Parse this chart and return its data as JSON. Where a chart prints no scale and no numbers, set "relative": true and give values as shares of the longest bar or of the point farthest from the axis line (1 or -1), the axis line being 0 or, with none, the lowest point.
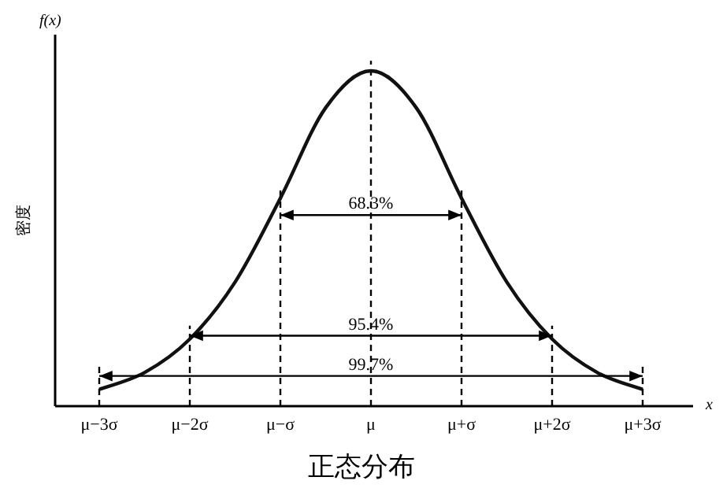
{
  "chart_data": {
    "type": "line",
    "relative": true,
    "title": "正态分布",
    "xlabel": "x",
    "ylabel": "密度",
    "categories": [
      "μ−3σ",
      null,
      "μ−2σ",
      null,
      "μ−σ",
      null,
      "μ",
      null,
      "μ+σ",
      null,
      "μ+2σ",
      null,
      "μ+3σ"
    ],
    "series": [
      {
        "color": "#111111",
        "values": [
          0.05,
          0.1,
          0.2,
          0.37,
          0.62,
          0.89,
          1,
          0.89,
          0.62,
          0.37,
          0.2,
          0.1,
          0.05
        ]
      },
      {
        "color": "#000000",
        "values": [
          null,
          null,
          null,
          null,
          0.57,
          0.57,
          0.57,
          0.57,
          0.57,
          null,
          null,
          null,
          null
        ]
      },
      {
        "color": "#000000",
        "values": [
          null,
          null,
          0.21,
          0.21,
          0.21,
          0.21,
          0.21,
          0.21,
          0.21,
          0.21,
          0.21,
          null,
          null
        ]
      },
      {
        "color": "#000000",
        "values": [
          0.09,
          0.09,
          0.09,
          0.09,
          0.09,
          0.09,
          0.09,
          0.09,
          0.09,
          0.09,
          0.09,
          0.09,
          0.09
        ]
      }
    ],
    "ref_lines": [
      {
        "axis": "x",
        "value": "μ−3σ",
        "line_style": "dashed"
      },
      {
        "axis": "x",
        "value": "μ−2σ",
        "line_style": "dashed"
      },
      {
        "axis": "x",
        "value": "μ−σ",
        "line_style": "dashed"
      },
      {
        "axis": "x",
        "value": "μ",
        "line_style": "dashed"
      },
      {
        "axis": "x",
        "value": "μ+σ",
        "line_style": "dashed"
      },
      {
        "axis": "x",
        "value": "μ+2σ",
        "line_style": "dashed"
      },
      {
        "axis": "x",
        "value": "μ+3σ",
        "line_style": "dashed"
      }
    ],
    "annotations": [
      {
        "text": "68.3%",
        "x": "μ",
        "y": 0.57
      },
      {
        "text": "95.4%",
        "x": "μ",
        "y": 0.21
      },
      {
        "text": "99.7%",
        "x": "μ",
        "y": 0.09
      },
      "f(x)"
    ]
  }
}
